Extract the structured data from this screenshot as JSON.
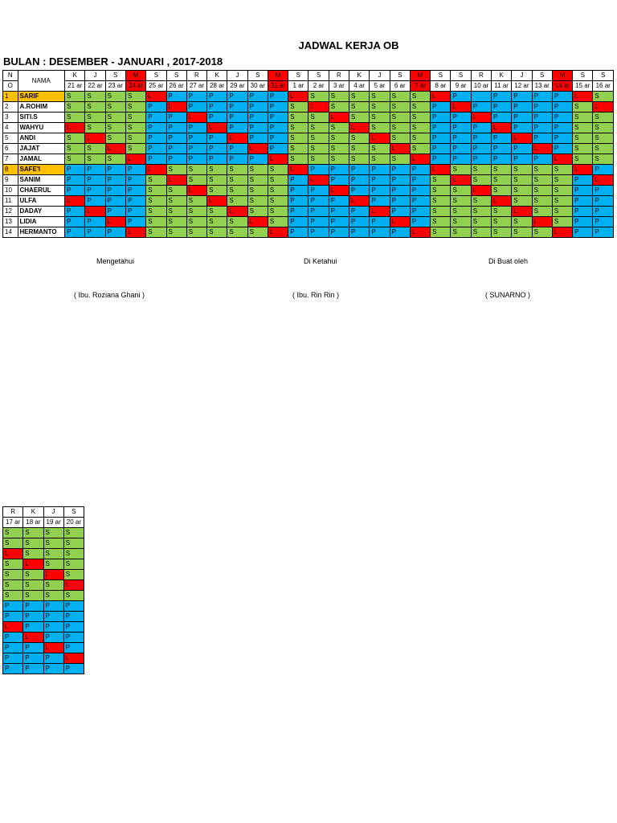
{
  "title": "JADWAL KERJA OB",
  "subtitle": "BULAN : DESEMBER -  JANUARI , 2017-2018",
  "header": {
    "no_top": "N",
    "no_bottom": "O",
    "nama": "NAMA"
  },
  "colors": {
    "S": "#92d050",
    "P": "#00b0f0",
    "L": "#ff0000",
    "highlight": "#ffc000"
  },
  "days": [
    "K",
    "J",
    "S",
    "M",
    "S",
    "S",
    "R",
    "K",
    "J",
    "S",
    "M",
    "S",
    "S",
    "R",
    "K",
    "J",
    "S",
    "M",
    "S",
    "S",
    "R",
    "K",
    "J",
    "S",
    "M",
    "S",
    "S"
  ],
  "day_red": [
    3,
    10,
    17,
    24
  ],
  "dates": [
    "21 ar",
    "22 ar",
    "23 ar",
    "24 ar",
    "25 ar",
    "26 ar",
    "27 ar",
    "28 ar",
    "29 ar",
    "30 ar",
    "31 ar",
    "1  ar",
    "2  ar",
    "3  ar",
    "4  ar",
    "5  ar",
    "6  ar",
    "7  ar",
    "8  ar",
    "9  ar",
    "10 ar",
    "11 ar",
    "12 ar",
    "13 ar",
    "14 ar",
    "15 ar",
    "16 ar"
  ],
  "rows": [
    {
      "no": "1",
      "name": "SARIF",
      "hl": true,
      "cells": [
        "S",
        "S",
        "S",
        "S",
        "L",
        "P",
        "P",
        "P",
        "P",
        "P",
        "P",
        "L",
        "S",
        "S",
        "S",
        "S",
        "S",
        "S",
        "L",
        "P",
        "",
        "P",
        "P",
        "P",
        "P",
        "L",
        "S"
      ]
    },
    {
      "no": "2",
      "name": "A.ROHIM",
      "hl": false,
      "cells": [
        "S",
        "S",
        "S",
        "S",
        "P",
        "L",
        "P",
        "P",
        "P",
        "P",
        "P",
        "S",
        "L",
        "S",
        "S",
        "S",
        "S",
        "S",
        "P",
        "L",
        "P",
        "P",
        "P",
        "P",
        "P",
        "S",
        "L"
      ]
    },
    {
      "no": "3",
      "name": "SITI.S",
      "hl": false,
      "cells": [
        "S",
        "S",
        "S",
        "S",
        "P",
        "P",
        "L",
        "P",
        "P",
        "P",
        "P",
        "S",
        "S",
        "L",
        "S",
        "S",
        "S",
        "S",
        "P",
        "P",
        "L",
        "P",
        "P",
        "P",
        "P",
        "S",
        "S"
      ]
    },
    {
      "no": "4",
      "name": "WAHYU",
      "hl": false,
      "cells": [
        "L",
        "S",
        "S",
        "S",
        "P",
        "P",
        "P",
        "L",
        "P",
        "P",
        "P",
        "S",
        "S",
        "S",
        "L",
        "S",
        "S",
        "S",
        "P",
        "P",
        "P",
        "L",
        "P",
        "P",
        "P",
        "S",
        "S"
      ]
    },
    {
      "no": "5",
      "name": "ANDI",
      "hl": false,
      "cells": [
        "S",
        "L",
        "S",
        "S",
        "P",
        "P",
        "P",
        "P",
        "L",
        "P",
        "P",
        "S",
        "S",
        "S",
        "S",
        "L",
        "S",
        "S",
        "P",
        "P",
        "P",
        "P",
        "L",
        "P",
        "P",
        "S",
        "S"
      ]
    },
    {
      "no": "6",
      "name": "JAJAT",
      "hl": false,
      "cells": [
        "S",
        "S",
        "L",
        "S",
        "P",
        "P",
        "P",
        "P",
        "P",
        "L",
        "P",
        "S",
        "S",
        "S",
        "S",
        "S",
        "L",
        "S",
        "P",
        "P",
        "P",
        "P",
        "P",
        "L",
        "P",
        "S",
        "S"
      ]
    },
    {
      "no": "7",
      "name": "JAMAL",
      "hl": false,
      "cells": [
        "S",
        "S",
        "S",
        "L",
        "P",
        "P",
        "P",
        "P",
        "P",
        "P",
        "L",
        "S",
        "S",
        "S",
        "S",
        "S",
        "S",
        "L",
        "P",
        "P",
        "P",
        "P",
        "P",
        "P",
        "L",
        "S",
        "S"
      ]
    },
    {
      "no": "8",
      "name": "SAFE'I",
      "hl": true,
      "cells": [
        "P",
        "P",
        "P",
        "P",
        "L",
        "S",
        "S",
        "S",
        "S",
        "S",
        "S",
        "L",
        "P",
        "P",
        "P",
        "P",
        "P",
        "P",
        "L",
        "S",
        "S",
        "S",
        "S",
        "S",
        "S",
        "L",
        "P"
      ]
    },
    {
      "no": "9",
      "name": "SANIM",
      "hl": false,
      "cells": [
        "P",
        "P",
        "P",
        "P",
        "S",
        "L",
        "S",
        "S",
        "S",
        "S",
        "S",
        "P",
        "L",
        "P",
        "P",
        "P",
        "P",
        "P",
        "S",
        "L",
        "S",
        "S",
        "S",
        "S",
        "S",
        "P",
        "L"
      ]
    },
    {
      "no": "10",
      "name": "CHAERUL",
      "hl": false,
      "cells": [
        "P",
        "P",
        "P",
        "P",
        "S",
        "S",
        "L",
        "S",
        "S",
        "S",
        "S",
        "P",
        "P",
        "L",
        "P",
        "P",
        "P",
        "P",
        "S",
        "S",
        "L",
        "S",
        "S",
        "S",
        "S",
        "P",
        "P"
      ]
    },
    {
      "no": "11",
      "name": "ULFA",
      "hl": false,
      "cells": [
        "L",
        "P",
        "P",
        "P",
        "S",
        "S",
        "S",
        "L",
        "S",
        "S",
        "S",
        "P",
        "P",
        "P",
        "L",
        "P",
        "P",
        "P",
        "S",
        "S",
        "S",
        "L",
        "S",
        "S",
        "S",
        "P",
        "P"
      ]
    },
    {
      "no": "12",
      "name": "DADAY",
      "hl": false,
      "cells": [
        "P",
        "L",
        "P",
        "P",
        "S",
        "S",
        "S",
        "S",
        "L",
        "S",
        "S",
        "P",
        "P",
        "P",
        "P",
        "L",
        "P",
        "P",
        "S",
        "S",
        "S",
        "S",
        "L",
        "S",
        "S",
        "P",
        "P"
      ]
    },
    {
      "no": "13",
      "name": "LIDIA",
      "hl": false,
      "cells": [
        "P",
        "P",
        "L",
        "P",
        "S",
        "S",
        "S",
        "S",
        "S",
        "L",
        "S",
        "P",
        "P",
        "P",
        "P",
        "P",
        "L",
        "P",
        "S",
        "S",
        "S",
        "S",
        "S",
        "L",
        "S",
        "P",
        "P"
      ]
    },
    {
      "no": "14",
      "name": "HERMANTO",
      "hl": false,
      "cells": [
        "P",
        "P",
        "P",
        "L",
        "S",
        "S",
        "S",
        "S",
        "S",
        "S",
        "L",
        "P",
        "P",
        "P",
        "P",
        "P",
        "P",
        "L",
        "S",
        "S",
        "S",
        "S",
        "S",
        "S",
        "L",
        "P",
        "P"
      ]
    }
  ],
  "signatures": {
    "mengetahui": "Mengetahui",
    "diketahui": "Di Ketahui",
    "dibuat": "Di Buat oleh",
    "name1": "( Ibu. Roziana Ghani  )",
    "name2": "( Ibu. Rin Rin       )",
    "name3": "( SUNARNO  )"
  },
  "small_table": {
    "days": [
      "R",
      "K",
      "J",
      "S"
    ],
    "dates": [
      "17 ar",
      "18 ar",
      "19 ar",
      "20 ar"
    ],
    "rows": [
      [
        "S",
        "S",
        "S",
        "S"
      ],
      [
        "S",
        "S",
        "S",
        "S"
      ],
      [
        "L",
        "S",
        "S",
        "S"
      ],
      [
        "S",
        "L",
        "S",
        "S"
      ],
      [
        "S",
        "S",
        "L",
        "S"
      ],
      [
        "S",
        "S",
        "S",
        "L"
      ],
      [
        "S",
        "S",
        "S",
        "S"
      ],
      [
        "P",
        "P",
        "P",
        "P"
      ],
      [
        "P",
        "P",
        "P",
        "P"
      ],
      [
        "L",
        "P",
        "P",
        "P"
      ],
      [
        "P",
        "L",
        "P",
        "P"
      ],
      [
        "P",
        "P",
        "L",
        "P"
      ],
      [
        "P",
        "P",
        "P",
        "L"
      ],
      [
        "P",
        "P",
        "P",
        "P"
      ]
    ]
  }
}
